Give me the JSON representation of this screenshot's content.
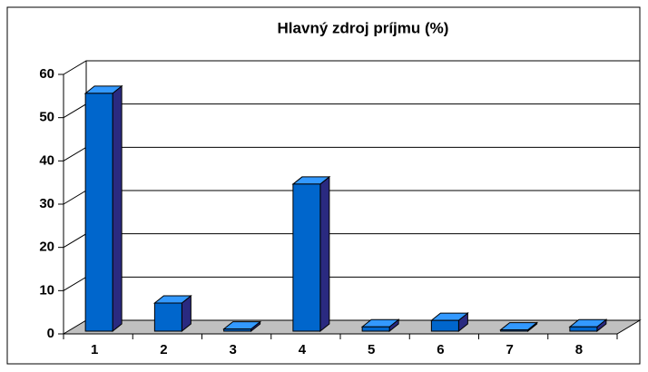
{
  "chart_data": {
    "type": "bar",
    "title": "Hlavný zdroj príjmu (%)",
    "categories": [
      "1",
      "2",
      "3",
      "4",
      "5",
      "6",
      "7",
      "8"
    ],
    "values": [
      55,
      6.5,
      0.5,
      34,
      1,
      2.5,
      0.3,
      1
    ],
    "color": "#0066cc",
    "ylim": [
      0,
      60
    ],
    "yticks": [
      0,
      10,
      20,
      30,
      40,
      50,
      60
    ],
    "grid": true
  }
}
